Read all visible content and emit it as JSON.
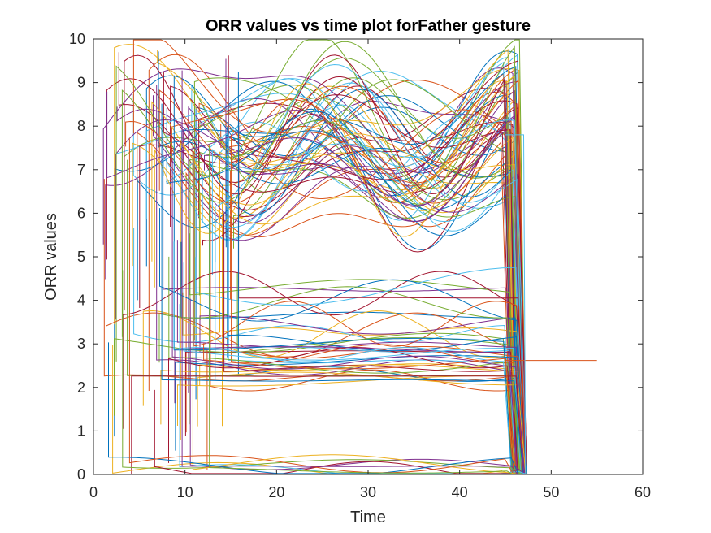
{
  "chart_data": {
    "type": "line",
    "title": "ORR values vs time plot forFather gesture",
    "xlabel": "Time",
    "ylabel": "ORR values",
    "xlim": [
      0,
      60
    ],
    "ylim": [
      0,
      10
    ],
    "xticks": [
      "0",
      "10",
      "20",
      "30",
      "40",
      "50",
      "60"
    ],
    "yticks": [
      "0",
      "1",
      "2",
      "3",
      "4",
      "5",
      "6",
      "7",
      "8",
      "9",
      "10"
    ],
    "grid": false,
    "legend": "none",
    "series_palette": [
      "#0072BD",
      "#D95319",
      "#EDB120",
      "#7E2F8E",
      "#77AC30",
      "#4DBEEE",
      "#A2142F"
    ],
    "series_groups": [
      {
        "level": 7.6,
        "spread": 0.9,
        "count": 70,
        "end_time": 45
      },
      {
        "level": 3.8,
        "spread": 0.6,
        "count": 14,
        "end_time": 45
      },
      {
        "level": 2.6,
        "spread": 0.45,
        "count": 30,
        "end_time": 45
      },
      {
        "level": 0.15,
        "spread": 0.1,
        "count": 10,
        "end_time": 45
      }
    ],
    "extra_series": [
      {
        "x": [
          45,
          47,
          55
        ],
        "y": [
          2.62,
          2.62,
          2.62
        ],
        "color": "#D95319"
      },
      {
        "x": [
          45,
          46.5,
          47,
          47.2
        ],
        "y": [
          7.8,
          7.8,
          7.8,
          0
        ],
        "color": "#4DBEEE"
      }
    ]
  }
}
